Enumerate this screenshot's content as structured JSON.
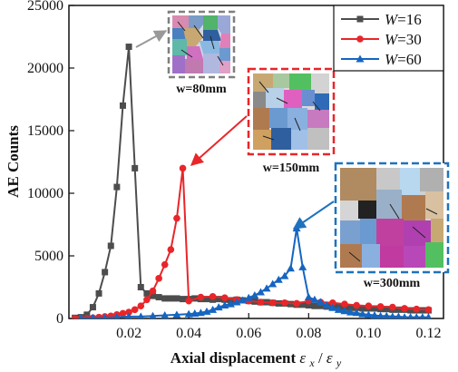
{
  "chart_data": {
    "type": "line",
    "title": "",
    "xlabel": {
      "text": "Axial displacement",
      "math_a": "ε",
      "sub_a": "x",
      "slash": " /",
      "math_b": "ε",
      "sub_b": "y"
    },
    "ylabel": "AE Counts",
    "xlim": [
      0.0,
      0.125
    ],
    "ylim": [
      0,
      25000
    ],
    "xticks": [
      0.02,
      0.04,
      0.06,
      0.08,
      0.1,
      0.12
    ],
    "xtick_labels": [
      "0.02",
      "0.04",
      "0.06",
      "0.08",
      "0.10",
      "0.12"
    ],
    "yticks": [
      0,
      5000,
      10000,
      15000,
      20000,
      25000
    ],
    "ytick_labels": [
      "0",
      "5000",
      "10000",
      "15000",
      "20000",
      "25000"
    ],
    "legend_position": "top-right",
    "series": [
      {
        "label_var": "W",
        "label_val": "=16",
        "color": "#4d4d4d",
        "marker": "square",
        "x": [
          0.002,
          0.004,
          0.006,
          0.008,
          0.01,
          0.012,
          0.014,
          0.016,
          0.018,
          0.02,
          0.022,
          0.024,
          0.026,
          0.028,
          0.03,
          0.032,
          0.034,
          0.036,
          0.038,
          0.04,
          0.042,
          0.044,
          0.046,
          0.048,
          0.05,
          0.052,
          0.054,
          0.056,
          0.058,
          0.06,
          0.062,
          0.064,
          0.066,
          0.068,
          0.07,
          0.072,
          0.074,
          0.076,
          0.078,
          0.08,
          0.082,
          0.084,
          0.086,
          0.088,
          0.09,
          0.092,
          0.094,
          0.096,
          0.098,
          0.1,
          0.102,
          0.104,
          0.106,
          0.108,
          0.11,
          0.112,
          0.114,
          0.116,
          0.118,
          0.12
        ],
        "y": [
          50,
          100,
          300,
          900,
          2000,
          3700,
          5800,
          10500,
          17000,
          21700,
          12000,
          2500,
          2000,
          1800,
          1700,
          1600,
          1600,
          1600,
          1550,
          1550,
          1600,
          1550,
          1550,
          1500,
          1550,
          1500,
          1450,
          1500,
          1450,
          1400,
          1350,
          1300,
          1300,
          1250,
          1200,
          1200,
          1150,
          1100,
          1100,
          1050,
          1000,
          1000,
          950,
          900,
          950,
          900,
          850,
          850,
          800,
          800,
          800,
          750,
          750,
          700,
          700,
          700,
          650,
          650,
          650,
          650
        ]
      },
      {
        "label_var": "W",
        "label_val": "=30",
        "color": "#e8262a",
        "marker": "circle",
        "x": [
          0.002,
          0.004,
          0.006,
          0.008,
          0.01,
          0.012,
          0.014,
          0.016,
          0.018,
          0.02,
          0.022,
          0.024,
          0.026,
          0.028,
          0.03,
          0.032,
          0.034,
          0.036,
          0.038,
          0.04,
          0.044,
          0.048,
          0.052,
          0.056,
          0.06,
          0.064,
          0.068,
          0.072,
          0.076,
          0.08,
          0.084,
          0.088,
          0.092,
          0.096,
          0.1,
          0.104,
          0.108,
          0.112,
          0.116,
          0.12
        ],
        "y": [
          0,
          0,
          0,
          50,
          100,
          150,
          200,
          300,
          400,
          500,
          700,
          1000,
          1500,
          2200,
          3200,
          4300,
          5500,
          8000,
          12000,
          1400,
          1700,
          1750,
          1650,
          1500,
          1400,
          1300,
          1250,
          1250,
          1200,
          1400,
          1300,
          1250,
          1150,
          1050,
          1000,
          950,
          900,
          800,
          750,
          700
        ]
      },
      {
        "label_var": "W",
        "label_val": "=60",
        "color": "#1565c0",
        "marker": "triangle",
        "x": [
          0.004,
          0.008,
          0.012,
          0.016,
          0.02,
          0.024,
          0.028,
          0.032,
          0.036,
          0.04,
          0.042,
          0.044,
          0.046,
          0.048,
          0.05,
          0.052,
          0.054,
          0.056,
          0.058,
          0.06,
          0.062,
          0.064,
          0.066,
          0.068,
          0.07,
          0.072,
          0.074,
          0.076,
          0.078,
          0.08,
          0.082,
          0.084,
          0.086,
          0.088,
          0.09,
          0.092,
          0.094,
          0.096,
          0.098,
          0.1,
          0.102,
          0.104,
          0.106,
          0.108,
          0.11,
          0.112,
          0.114,
          0.116,
          0.118,
          0.12
        ],
        "y": [
          50,
          50,
          50,
          100,
          150,
          150,
          200,
          250,
          300,
          350,
          400,
          450,
          550,
          700,
          900,
          1050,
          1150,
          1300,
          1450,
          1650,
          1850,
          2100,
          2400,
          2750,
          3100,
          3400,
          4000,
          7200,
          4100,
          1700,
          1500,
          1300,
          1050,
          850,
          700,
          600,
          500,
          450,
          350,
          300,
          250,
          200,
          200,
          150,
          150,
          100,
          100,
          100,
          100,
          100
        ]
      }
    ]
  },
  "insets": [
    {
      "caption": "w=80mm",
      "border_color": "#7f7f7f",
      "arrow_color": "#999999"
    },
    {
      "caption": "w=150mm",
      "border_color": "#e8262a",
      "arrow_color": "#e8262a"
    },
    {
      "caption": "w=300mm",
      "border_color": "#1e73be",
      "arrow_color": "#1e73be"
    }
  ]
}
